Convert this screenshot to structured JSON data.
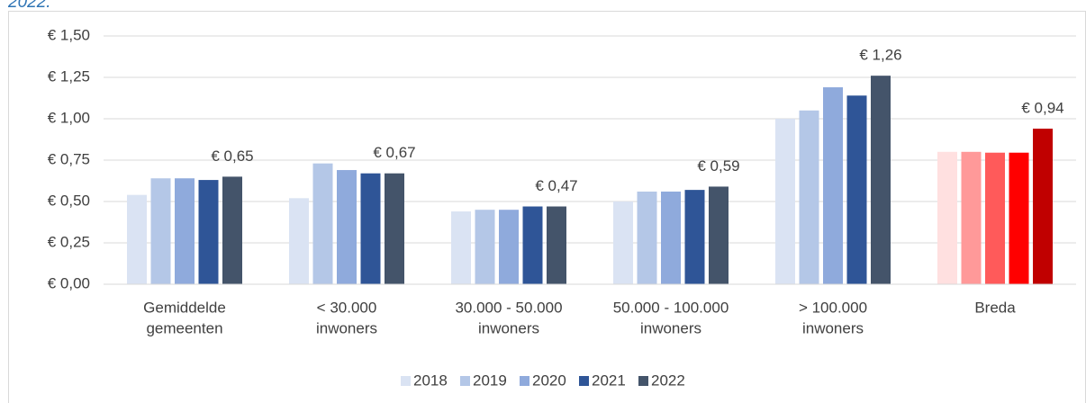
{
  "chart_data": {
    "type": "bar",
    "caption": "2022.",
    "categories": [
      [
        "Gemiddelde",
        "gemeenten"
      ],
      [
        "< 30.000",
        "inwoners"
      ],
      [
        "30.000 - 50.000",
        "inwoners"
      ],
      [
        "50.000 - 100.000",
        "inwoners"
      ],
      [
        "> 100.000",
        "inwoners"
      ],
      [
        "Breda"
      ]
    ],
    "series": [
      {
        "name": "2018",
        "color": "#dae3f3",
        "values": [
          0.54,
          0.52,
          0.44,
          0.5,
          1.0,
          0.8
        ]
      },
      {
        "name": "2019",
        "color": "#b4c7e7",
        "values": [
          0.64,
          0.73,
          0.45,
          0.56,
          1.05,
          0.8
        ]
      },
      {
        "name": "2020",
        "color": "#8faadc",
        "values": [
          0.64,
          0.69,
          0.45,
          0.56,
          1.19,
          0.795
        ]
      },
      {
        "name": "2021",
        "color": "#2f5597",
        "values": [
          0.63,
          0.67,
          0.47,
          0.57,
          1.14,
          0.795
        ]
      },
      {
        "name": "2022",
        "color": "#44546a",
        "values": [
          0.65,
          0.67,
          0.47,
          0.59,
          1.26,
          0.94
        ],
        "value_labels": [
          "€ 0,65",
          "€ 0,67",
          "€ 0,47",
          "€ 0,59",
          "€ 1,26",
          "€ 0,94"
        ]
      }
    ],
    "highlight_category": "Breda",
    "highlight_colors": [
      "#ffe0e0",
      "#ff9999",
      "#ff5a5a",
      "#ff0000",
      "#c00000"
    ],
    "ylim": [
      0,
      1.5
    ],
    "yticks": [
      {
        "value": 0,
        "label": "€ 0,00"
      },
      {
        "value": 0.25,
        "label": "€ 0,25"
      },
      {
        "value": 0.5,
        "label": "€ 0,50"
      },
      {
        "value": 0.75,
        "label": "€ 0,75"
      },
      {
        "value": 1.0,
        "label": "€ 1,00"
      },
      {
        "value": 1.25,
        "label": "€ 1,25"
      },
      {
        "value": 1.5,
        "label": "€ 1,50"
      }
    ],
    "grid": true,
    "legend": "bottom"
  }
}
